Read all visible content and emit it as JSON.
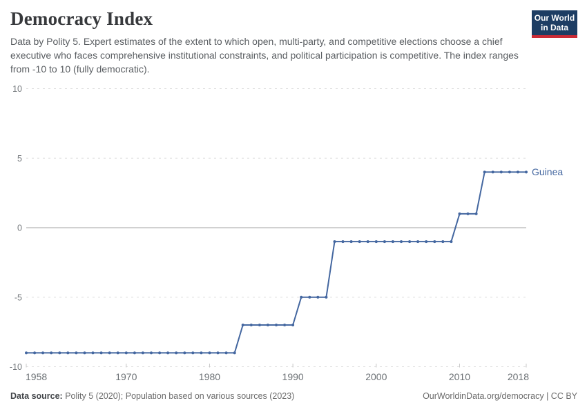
{
  "header": {
    "title": "Democracy Index",
    "subtitle": "Data by Polity 5. Expert estimates of the extent to which open, multi-party, and competitive elections choose a chief executive who faces comprehensive institutional constraints, and political participation is competitive. The index ranges from -10 to 10 (fully democratic).",
    "logo": {
      "line1": "Our World",
      "line2": "in Data",
      "bg_color": "#1d3d63",
      "accent_color": "#cb2b36"
    }
  },
  "chart_data": {
    "type": "line",
    "title": "Democracy Index",
    "xlabel": "",
    "ylabel": "",
    "xlim": [
      1958,
      2018
    ],
    "ylim": [
      -10,
      10
    ],
    "x_ticks": [
      1958,
      1970,
      1980,
      1990,
      2000,
      2010,
      2018
    ],
    "y_ticks": [
      10,
      5,
      0,
      -5,
      -10
    ],
    "grid": "horizontal dashed gridlines, solid zero line",
    "legend_position": "end-of-line entity label",
    "colors": {
      "gridline": "#dcdcdc",
      "zero_line": "#a3a3a3",
      "tick_mark": "#c8c8c8"
    },
    "series": [
      {
        "name": "Guinea",
        "color": "#4467a0",
        "x_start": 1958,
        "x_step": 1,
        "values": [
          -9,
          -9,
          -9,
          -9,
          -9,
          -9,
          -9,
          -9,
          -9,
          -9,
          -9,
          -9,
          -9,
          -9,
          -9,
          -9,
          -9,
          -9,
          -9,
          -9,
          -9,
          -9,
          -9,
          -9,
          -9,
          -9,
          -7,
          -7,
          -7,
          -7,
          -7,
          -7,
          -7,
          -5,
          -5,
          -5,
          -5,
          -1,
          -1,
          -1,
          -1,
          -1,
          -1,
          -1,
          -1,
          -1,
          -1,
          -1,
          -1,
          -1,
          -1,
          -1,
          1,
          1,
          1,
          4,
          4,
          4,
          4,
          4,
          4
        ]
      }
    ]
  },
  "footer": {
    "source_label": "Data source:",
    "source_text": " Polity 5 (2020); Population based on various sources (2023)",
    "credit": "OurWorldinData.org/democracy | CC BY"
  }
}
